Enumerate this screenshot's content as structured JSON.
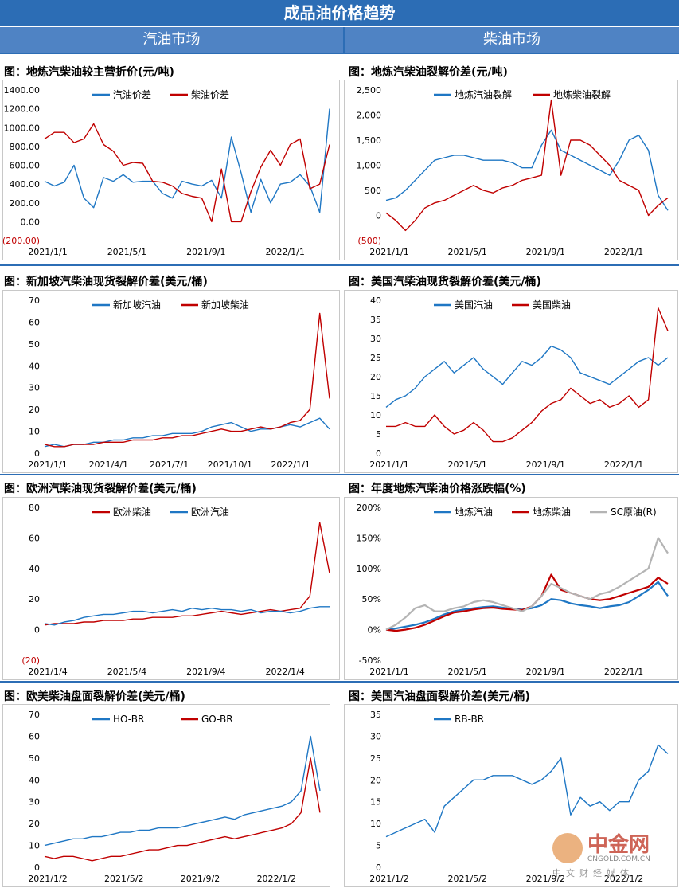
{
  "title": "成品油价格趋势",
  "sections": {
    "gasoline": "汽油市场",
    "diesel": "柴油市场"
  },
  "watermark": {
    "name": "中金网",
    "url": "CNGOLD.COM.CN",
    "sub": "中文财经媒体"
  },
  "colors": {
    "blue": "#1f77c4",
    "red": "#c00000",
    "gray": "#b4b4b4"
  },
  "chart_data": [
    {
      "id": "c1",
      "type": "line",
      "title": "图：地炼汽柴油较主营折价(元/吨)",
      "yticks": [
        "1400.00",
        "1200.00",
        "1000.00",
        "800.00",
        "600.00",
        "400.00",
        "200.00",
        "0.00",
        "(200.00)"
      ],
      "ylim": [
        -200,
        1400
      ],
      "xticks": [
        "2021/1/1",
        "2021/5/1",
        "2021/9/1",
        "2022/1/1"
      ],
      "legend": "top",
      "series": [
        {
          "name": "汽油价差",
          "color": "#1f77c4",
          "values": [
            430,
            380,
            420,
            600,
            250,
            150,
            470,
            430,
            500,
            420,
            430,
            430,
            300,
            250,
            430,
            400,
            380,
            440,
            250,
            900,
            520,
            100,
            450,
            200,
            400,
            420,
            500,
            380,
            100,
            1200
          ]
        },
        {
          "name": "柴油价差",
          "color": "#c00000",
          "values": [
            880,
            950,
            950,
            840,
            880,
            1040,
            820,
            750,
            600,
            630,
            620,
            430,
            420,
            380,
            300,
            270,
            250,
            0,
            560,
            0,
            0,
            320,
            580,
            760,
            600,
            820,
            880,
            350,
            400,
            820
          ]
        }
      ]
    },
    {
      "id": "c2",
      "type": "line",
      "title": "图：地炼汽柴油裂解价差(元/吨)",
      "yticks": [
        "2,500",
        "2,000",
        "1,500",
        "1,000",
        "500",
        "0",
        "(500)"
      ],
      "ylim": [
        -500,
        2500
      ],
      "xticks": [
        "2021/1/1",
        "2021/5/1",
        "2021/9/1",
        "2022/1/1"
      ],
      "legend": "top",
      "series": [
        {
          "name": "地炼汽油裂解",
          "color": "#1f77c4",
          "values": [
            300,
            350,
            500,
            700,
            900,
            1100,
            1150,
            1200,
            1200,
            1150,
            1100,
            1100,
            1100,
            1050,
            950,
            950,
            1400,
            1700,
            1300,
            1200,
            1100,
            1000,
            900,
            800,
            1100,
            1500,
            1600,
            1300,
            400,
            100
          ]
        },
        {
          "name": "地炼柴油裂解",
          "color": "#c00000",
          "values": [
            50,
            -100,
            -300,
            -100,
            150,
            250,
            300,
            400,
            500,
            600,
            500,
            450,
            550,
            600,
            700,
            750,
            800,
            2300,
            800,
            1500,
            1500,
            1400,
            1200,
            1000,
            700,
            600,
            500,
            0,
            200,
            350
          ]
        }
      ]
    },
    {
      "id": "c3",
      "type": "line",
      "title": "图：新加坡汽柴油现货裂解价差(美元/桶)",
      "yticks": [
        "70",
        "60",
        "50",
        "40",
        "30",
        "20",
        "10",
        "0"
      ],
      "ylim": [
        0,
        70
      ],
      "xticks": [
        "2021/1/1",
        "2021/4/1",
        "2021/7/1",
        "2021/10/1",
        "2022/1/1"
      ],
      "legend": "top",
      "series": [
        {
          "name": "新加坡汽油",
          "color": "#1f77c4",
          "values": [
            3,
            4,
            3,
            4,
            4,
            5,
            5,
            6,
            6,
            7,
            7,
            8,
            8,
            9,
            9,
            9,
            10,
            12,
            13,
            14,
            12,
            10,
            11,
            11,
            12,
            13,
            12,
            14,
            16,
            11
          ]
        },
        {
          "name": "新加坡柴油",
          "color": "#c00000",
          "values": [
            4,
            3,
            3,
            4,
            4,
            4,
            5,
            5,
            5,
            6,
            6,
            6,
            7,
            7,
            8,
            8,
            9,
            10,
            11,
            10,
            10,
            11,
            12,
            11,
            12,
            14,
            15,
            20,
            64,
            25
          ]
        }
      ]
    },
    {
      "id": "c4",
      "type": "line",
      "title": "图：美国汽柴油现货裂解价差(美元/桶)",
      "yticks": [
        "40",
        "35",
        "30",
        "25",
        "20",
        "15",
        "10",
        "5",
        "0"
      ],
      "ylim": [
        0,
        40
      ],
      "xticks": [
        "2021/1/1",
        "2021/5/1",
        "2021/9/1",
        "2022/1/1"
      ],
      "legend": "top",
      "series": [
        {
          "name": "美国汽油",
          "color": "#1f77c4",
          "values": [
            12,
            14,
            15,
            17,
            20,
            22,
            24,
            21,
            23,
            25,
            22,
            20,
            18,
            21,
            24,
            23,
            25,
            28,
            27,
            25,
            21,
            20,
            19,
            18,
            20,
            22,
            24,
            25,
            23,
            25
          ]
        },
        {
          "name": "美国柴油",
          "color": "#c00000",
          "values": [
            7,
            7,
            8,
            7,
            7,
            10,
            7,
            5,
            6,
            8,
            6,
            3,
            3,
            4,
            6,
            8,
            11,
            13,
            14,
            17,
            15,
            13,
            14,
            12,
            13,
            15,
            12,
            14,
            38,
            32
          ]
        }
      ]
    },
    {
      "id": "c5",
      "type": "line",
      "title": "图：欧洲汽柴油现货裂解价差(美元/桶)",
      "yticks": [
        "80",
        "60",
        "40",
        "20",
        "0",
        "(20)"
      ],
      "ylim": [
        -20,
        80
      ],
      "xticks": [
        "2021/1/4",
        "2021/5/4",
        "2021/9/4",
        "2022/1/4"
      ],
      "legend": "top",
      "series": [
        {
          "name": "欧洲柴油",
          "color": "#c00000",
          "values": [
            3,
            4,
            4,
            4,
            5,
            5,
            6,
            6,
            6,
            7,
            7,
            8,
            8,
            8,
            9,
            9,
            10,
            11,
            12,
            11,
            10,
            11,
            12,
            13,
            12,
            13,
            14,
            22,
            70,
            37
          ]
        },
        {
          "name": "欧洲汽油",
          "color": "#1f77c4",
          "values": [
            4,
            3,
            5,
            6,
            8,
            9,
            10,
            10,
            11,
            12,
            12,
            11,
            12,
            13,
            12,
            14,
            13,
            14,
            13,
            13,
            12,
            13,
            11,
            12,
            12,
            11,
            12,
            14,
            15,
            15
          ]
        }
      ]
    },
    {
      "id": "c6",
      "type": "line",
      "title": "图：年度地炼汽柴油价格涨跌幅(%)",
      "yticks": [
        "200%",
        "150%",
        "100%",
        "50%",
        "0%",
        "-50%"
      ],
      "ylim": [
        -50,
        200
      ],
      "xticks": [
        "2021/1/1",
        "2021/5/1",
        "2021/9/1",
        "2022/1/1"
      ],
      "legend": "top",
      "series": [
        {
          "name": "地炼汽油",
          "color": "#1f77c4",
          "values": [
            0,
            2,
            5,
            8,
            12,
            18,
            25,
            30,
            33,
            35,
            37,
            38,
            36,
            34,
            33,
            35,
            40,
            50,
            48,
            43,
            40,
            38,
            35,
            38,
            40,
            45,
            55,
            65,
            78,
            55
          ]
        },
        {
          "name": "地炼柴油",
          "color": "#c00000",
          "values": [
            0,
            -2,
            0,
            3,
            8,
            15,
            22,
            28,
            30,
            33,
            35,
            36,
            34,
            33,
            32,
            38,
            55,
            90,
            65,
            60,
            55,
            50,
            48,
            50,
            55,
            60,
            65,
            70,
            85,
            75
          ]
        },
        {
          "name": "SC原油(R)",
          "color": "#b4b4b4",
          "values": [
            0,
            8,
            20,
            35,
            40,
            30,
            30,
            35,
            38,
            45,
            48,
            45,
            40,
            35,
            30,
            38,
            55,
            75,
            68,
            60,
            55,
            50,
            58,
            62,
            70,
            80,
            90,
            100,
            150,
            125
          ]
        }
      ]
    },
    {
      "id": "c7",
      "type": "line",
      "title": "图：欧美柴油盘面裂解价差(美元/桶)",
      "yticks": [
        "70",
        "60",
        "50",
        "40",
        "30",
        "20",
        "10",
        "0"
      ],
      "ylim": [
        0,
        70
      ],
      "xticks": [
        "2021/1/2",
        "2021/5/2",
        "2021/9/2",
        "2022/1/2"
      ],
      "legend": "top",
      "series": [
        {
          "name": "HO-BR",
          "color": "#1f77c4",
          "values": [
            10,
            11,
            12,
            13,
            13,
            14,
            14,
            15,
            16,
            16,
            17,
            17,
            18,
            18,
            18,
            19,
            20,
            21,
            22,
            23,
            22,
            24,
            25,
            26,
            27,
            28,
            30,
            35,
            60,
            35
          ]
        },
        {
          "name": "GO-BR",
          "color": "#c00000",
          "values": [
            5,
            4,
            5,
            5,
            4,
            3,
            4,
            5,
            5,
            6,
            7,
            8,
            8,
            9,
            10,
            10,
            11,
            12,
            13,
            14,
            13,
            14,
            15,
            16,
            17,
            18,
            20,
            25,
            50,
            25
          ]
        }
      ]
    },
    {
      "id": "c8",
      "type": "line",
      "title": "图：美国汽油盘面裂解价差(美元/桶)",
      "yticks": [
        "35",
        "30",
        "25",
        "20",
        "15",
        "10",
        "5",
        "0"
      ],
      "ylim": [
        0,
        35
      ],
      "xticks": [
        "2021/1/2",
        "2021/5/2",
        "2021/9/2",
        "2022/1/2"
      ],
      "legend": "top",
      "series": [
        {
          "name": "RB-BR",
          "color": "#1f77c4",
          "values": [
            7,
            8,
            9,
            10,
            11,
            8,
            14,
            16,
            18,
            20,
            20,
            21,
            21,
            21,
            20,
            19,
            20,
            22,
            25,
            12,
            16,
            14,
            15,
            13,
            15,
            15,
            20,
            22,
            28,
            26
          ]
        }
      ]
    }
  ]
}
